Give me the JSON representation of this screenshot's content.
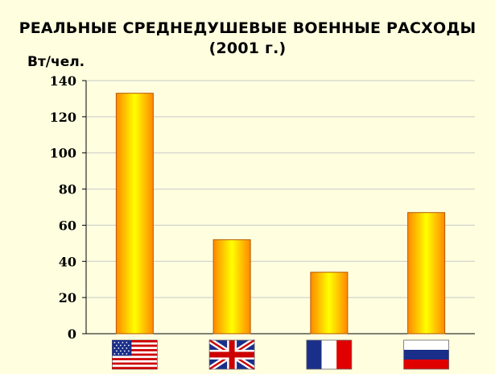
{
  "chart_data": {
    "type": "bar",
    "title": "РЕАЛЬНЫЕ СРЕДНЕДУШЕВЫЕ ВОЕННЫЕ РАСХОДЫ",
    "subtitle": "(2001 г.)",
    "ylabel": "Вт/чел.",
    "xlabel": "",
    "categories": [
      "",
      "",
      "",
      ""
    ],
    "category_icons": [
      "usa-flag-icon",
      "uk-flag-icon",
      "france-flag-icon",
      "russia-flag-icon"
    ],
    "values": [
      133,
      52,
      34,
      67
    ],
    "ylim": [
      0,
      140
    ],
    "yticks": [
      "0",
      "20",
      "40",
      "60",
      "80",
      "100",
      "120",
      "140"
    ],
    "grid": true,
    "legend": "none",
    "bar_colors": {
      "edge": "#ff8800",
      "center": "#ffff00",
      "outline": "#b35a00"
    },
    "grid_color": "#c8c8c8"
  }
}
